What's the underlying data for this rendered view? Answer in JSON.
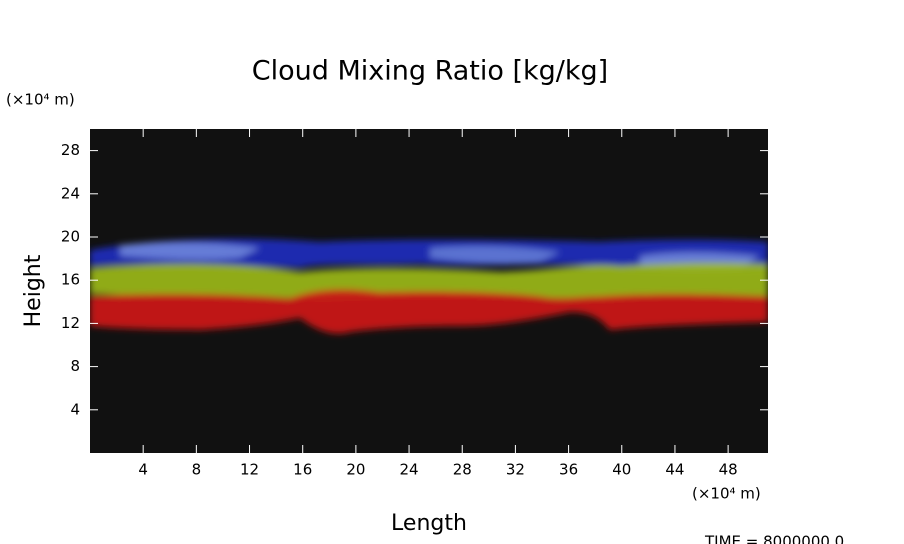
{
  "chart_data": {
    "type": "field",
    "title": "Cloud Mixing Ratio [kg/kg]",
    "x_label": "Length",
    "y_label": "Height",
    "x_unit": "(×10⁴ m)",
    "y_unit": "(×10⁴ m)",
    "footer": "TIME = 8000000.0",
    "xlim": [
      0,
      51
    ],
    "ylim": [
      0,
      30
    ],
    "xticks": [
      4,
      8,
      12,
      16,
      20,
      24,
      28,
      32,
      36,
      40,
      44,
      48
    ],
    "yticks": [
      4,
      8,
      12,
      16,
      20,
      24,
      28
    ],
    "background": "#111111"
  }
}
